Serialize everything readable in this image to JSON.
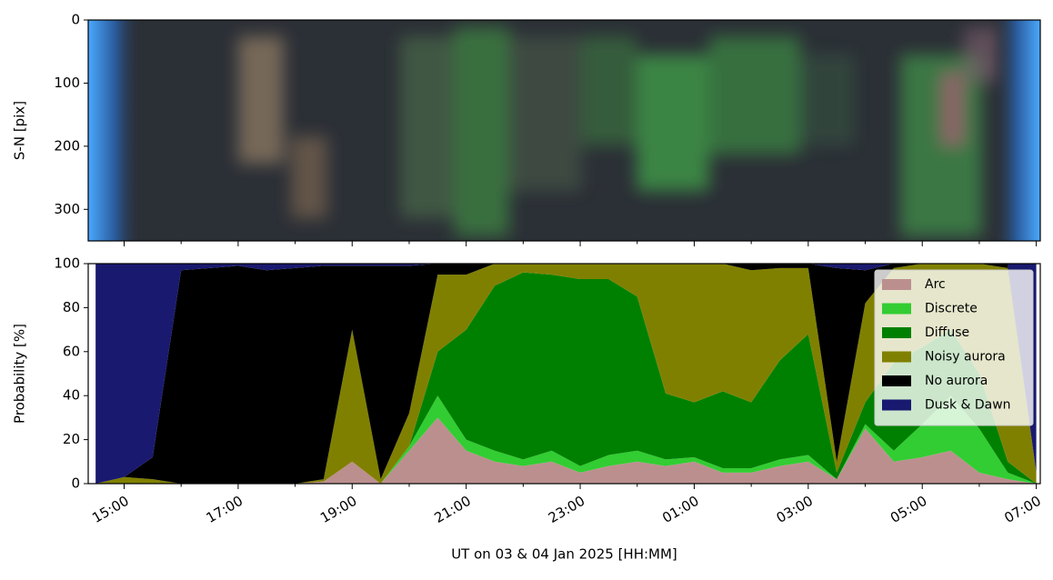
{
  "chart_data": [
    {
      "type": "image",
      "ylabel": "S-N [pix]",
      "ylim": [
        350,
        0
      ],
      "yticks": [
        0,
        100,
        200,
        300
      ]
    },
    {
      "type": "stackedarea",
      "xlabel": "UT on 03 & 04 Jan 2025 [HH:MM]",
      "ylabel": "Probability [%]",
      "xlim": [
        14.37,
        31.07
      ],
      "xticks": [
        {
          "value": 15,
          "label": "15:00"
        },
        {
          "value": 17,
          "label": "17:00"
        },
        {
          "value": 19,
          "label": "19:00"
        },
        {
          "value": 21,
          "label": "21:00"
        },
        {
          "value": 23,
          "label": "23:00"
        },
        {
          "value": 25,
          "label": "01:00"
        },
        {
          "value": 27,
          "label": "03:00"
        },
        {
          "value": 29,
          "label": "05:00"
        },
        {
          "value": 31,
          "label": "07:00"
        }
      ],
      "ylim": [
        0,
        100
      ],
      "yticks": [
        0,
        20,
        40,
        60,
        80,
        100
      ],
      "legend": "upper right",
      "x": [
        14.5,
        15,
        15.5,
        16,
        16.5,
        17,
        17.5,
        18,
        18.5,
        19,
        19.5,
        20,
        20.5,
        21,
        21.5,
        22,
        22.5,
        23,
        23.5,
        24,
        24.5,
        25,
        25.5,
        26,
        26.5,
        27,
        27.5,
        28,
        28.5,
        29,
        29.5,
        30,
        30.5,
        31
      ],
      "series": [
        {
          "name": "Arc",
          "color": "#bc8f8f",
          "values": [
            0,
            0,
            0,
            0,
            0,
            0,
            0,
            0,
            1,
            10,
            0,
            15,
            30,
            15,
            10,
            8,
            10,
            5,
            8,
            10,
            8,
            10,
            5,
            5,
            8,
            10,
            2,
            25,
            10,
            12,
            15,
            5,
            2,
            0
          ]
        },
        {
          "name": "Discrete",
          "color": "#32cd32",
          "values": [
            0,
            0,
            0,
            0,
            0,
            0,
            0,
            0,
            0,
            0,
            0,
            2,
            10,
            5,
            5,
            3,
            5,
            3,
            5,
            5,
            3,
            2,
            2,
            2,
            3,
            3,
            0,
            2,
            5,
            15,
            25,
            20,
            3,
            0
          ]
        },
        {
          "name": "Diffuse",
          "color": "#008000",
          "values": [
            0,
            0,
            0,
            0,
            0,
            0,
            0,
            0,
            0,
            0,
            0,
            0,
            20,
            50,
            75,
            85,
            80,
            85,
            80,
            70,
            30,
            25,
            35,
            30,
            45,
            55,
            3,
            10,
            40,
            35,
            30,
            25,
            5,
            0
          ]
        },
        {
          "name": "Noisy aurora",
          "color": "#808000",
          "values": [
            0,
            3,
            2,
            0,
            0,
            0,
            0,
            0,
            1,
            60,
            2,
            15,
            35,
            25,
            10,
            4,
            5,
            7,
            7,
            15,
            59,
            63,
            58,
            60,
            42,
            30,
            5,
            45,
            43,
            38,
            30,
            50,
            88,
            5
          ]
        },
        {
          "name": "No aurora",
          "color": "#000000",
          "values": [
            0,
            0,
            10,
            97,
            98,
            99,
            97,
            98,
            97,
            29,
            97,
            67,
            5,
            5,
            0,
            0,
            0,
            0,
            0,
            0,
            0,
            0,
            0,
            3,
            2,
            2,
            88,
            15,
            2,
            0,
            0,
            0,
            2,
            0
          ]
        },
        {
          "name": "Dusk & Dawn",
          "color": "#191970",
          "values": [
            100,
            97,
            88,
            3,
            2,
            1,
            3,
            2,
            1,
            1,
            1,
            1,
            0,
            0,
            0,
            0,
            0,
            0,
            0,
            0,
            0,
            0,
            0,
            0,
            0,
            0,
            2,
            3,
            0,
            0,
            0,
            0,
            0,
            95
          ]
        }
      ]
    }
  ]
}
